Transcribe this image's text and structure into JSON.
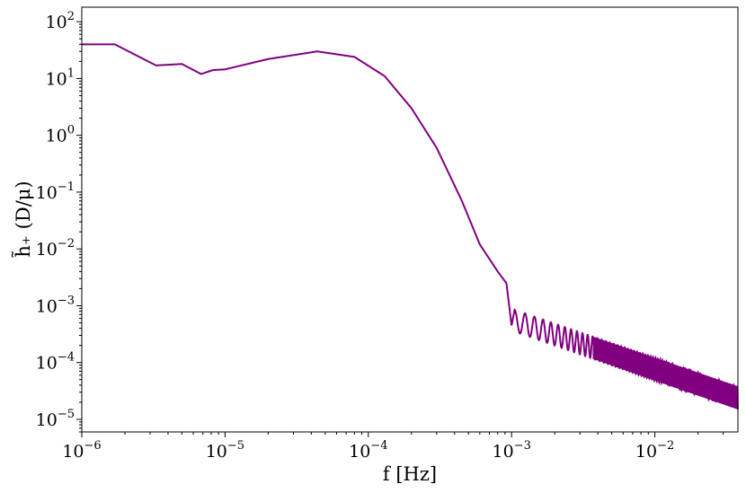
{
  "chart_data": {
    "type": "line",
    "xlabel": "f [Hz]",
    "ylabel": "h̃₊ (D/μ)",
    "x_scale": "log",
    "y_scale": "log",
    "xlim": [
      1e-06,
      0.038
    ],
    "ylim": [
      6e-06,
      180
    ],
    "grid": false,
    "x_ticks": [
      {
        "value": 1e-06,
        "base": "10",
        "exp": "−6"
      },
      {
        "value": 1e-05,
        "base": "10",
        "exp": "−5"
      },
      {
        "value": 0.0001,
        "base": "10",
        "exp": "−4"
      },
      {
        "value": 0.001,
        "base": "10",
        "exp": "−3"
      },
      {
        "value": 0.01,
        "base": "10",
        "exp": "−2"
      }
    ],
    "y_ticks": [
      {
        "value": 100,
        "base": "10",
        "exp": "2"
      },
      {
        "value": 10,
        "base": "10",
        "exp": "1"
      },
      {
        "value": 1,
        "base": "10",
        "exp": "0"
      },
      {
        "value": 0.1,
        "base": "10",
        "exp": "−1"
      },
      {
        "value": 0.01,
        "base": "10",
        "exp": "−2"
      },
      {
        "value": 0.001,
        "base": "10",
        "exp": "−3"
      },
      {
        "value": 0.0001,
        "base": "10",
        "exp": "−4"
      },
      {
        "value": 1e-05,
        "base": "10",
        "exp": "−5"
      }
    ],
    "series": [
      {
        "color": "#800080",
        "points": [
          [
            1e-06,
            40
          ],
          [
            1.7e-06,
            40
          ],
          [
            3.3e-06,
            17
          ],
          [
            5e-06,
            18
          ],
          [
            6.8e-06,
            12
          ],
          [
            8.2e-06,
            14
          ],
          [
            1e-05,
            14.5
          ],
          [
            2e-05,
            22
          ],
          [
            4.4e-05,
            30
          ],
          [
            8e-05,
            24
          ],
          [
            0.00013,
            11
          ],
          [
            0.0002,
            3
          ],
          [
            0.0003,
            0.6
          ],
          [
            0.00045,
            0.07
          ],
          [
            0.0006,
            0.012
          ],
          [
            0.0008,
            0.004
          ],
          [
            0.00092,
            0.0025
          ],
          [
            0.001,
            0.00045
          ]
        ],
        "oscillating_tail": {
          "f_start": 0.00105,
          "f_end": 0.038,
          "upper_start": 0.00085,
          "upper_end": 3.8e-05,
          "lower_start": 0.00035,
          "lower_end": 1.5e-05
        }
      }
    ]
  }
}
